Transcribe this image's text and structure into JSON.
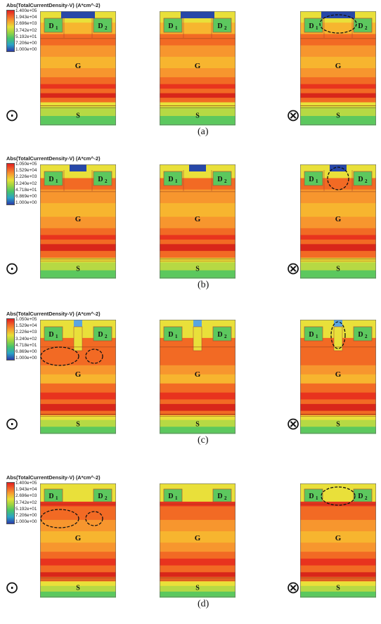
{
  "rows": [
    {
      "caption": "(a)",
      "legend": {
        "title": "Abs(TotalCurrentDensity-V) (A*cm^-2)",
        "values": [
          "1.400e+05",
          "1.943e+04",
          "2.696e+03",
          "3.742e+02",
          "5.192e+01",
          "7.206e+00",
          "1.000e+00"
        ]
      }
    },
    {
      "caption": "(b)",
      "legend": {
        "title": "Abs(TotalCurrentDensity-V) (A*cm^-2)",
        "values": [
          "1.050e+05",
          "1.529e+04",
          "2.226e+03",
          "3.240e+02",
          "4.718e+01",
          "6.869e+00",
          "1.000e+00"
        ]
      }
    },
    {
      "caption": "(c)",
      "legend": {
        "title": "Abs(TotalCurrentDensity-V) (A*cm^-2)",
        "values": [
          "1.050e+05",
          "1.529e+04",
          "2.226e+03",
          "3.240e+02",
          "4.718e+01",
          "6.869e+00",
          "1.000e+00"
        ]
      }
    },
    {
      "caption": "(d)",
      "legend": {
        "title": "Abs(TotalCurrentDensity-V) (A*cm^-2)",
        "values": [
          "1.400e+05",
          "1.943e+04",
          "2.696e+03",
          "3.742e+02",
          "5.192e+01",
          "7.206e+00",
          "1.000e+00"
        ]
      }
    }
  ],
  "labels": {
    "gate": "G",
    "source": "S",
    "drain1": "D",
    "drain2": "D",
    "sub1": "1",
    "sub2": "2"
  },
  "symbols": {
    "out_of_page": "⊙",
    "into_page": "⊗"
  },
  "colors": {
    "red": "#e8331e",
    "red_dark": "#d8261a",
    "orange": "#f26a24",
    "orange_light": "#f7962e",
    "amber": "#f7b52f",
    "yellow": "#e9e03a",
    "yellow_green": "#b6d944",
    "green": "#5cc85e",
    "teal": "#3fb6a0",
    "blue": "#2747a8",
    "light_blue": "#5aa6e0"
  }
}
